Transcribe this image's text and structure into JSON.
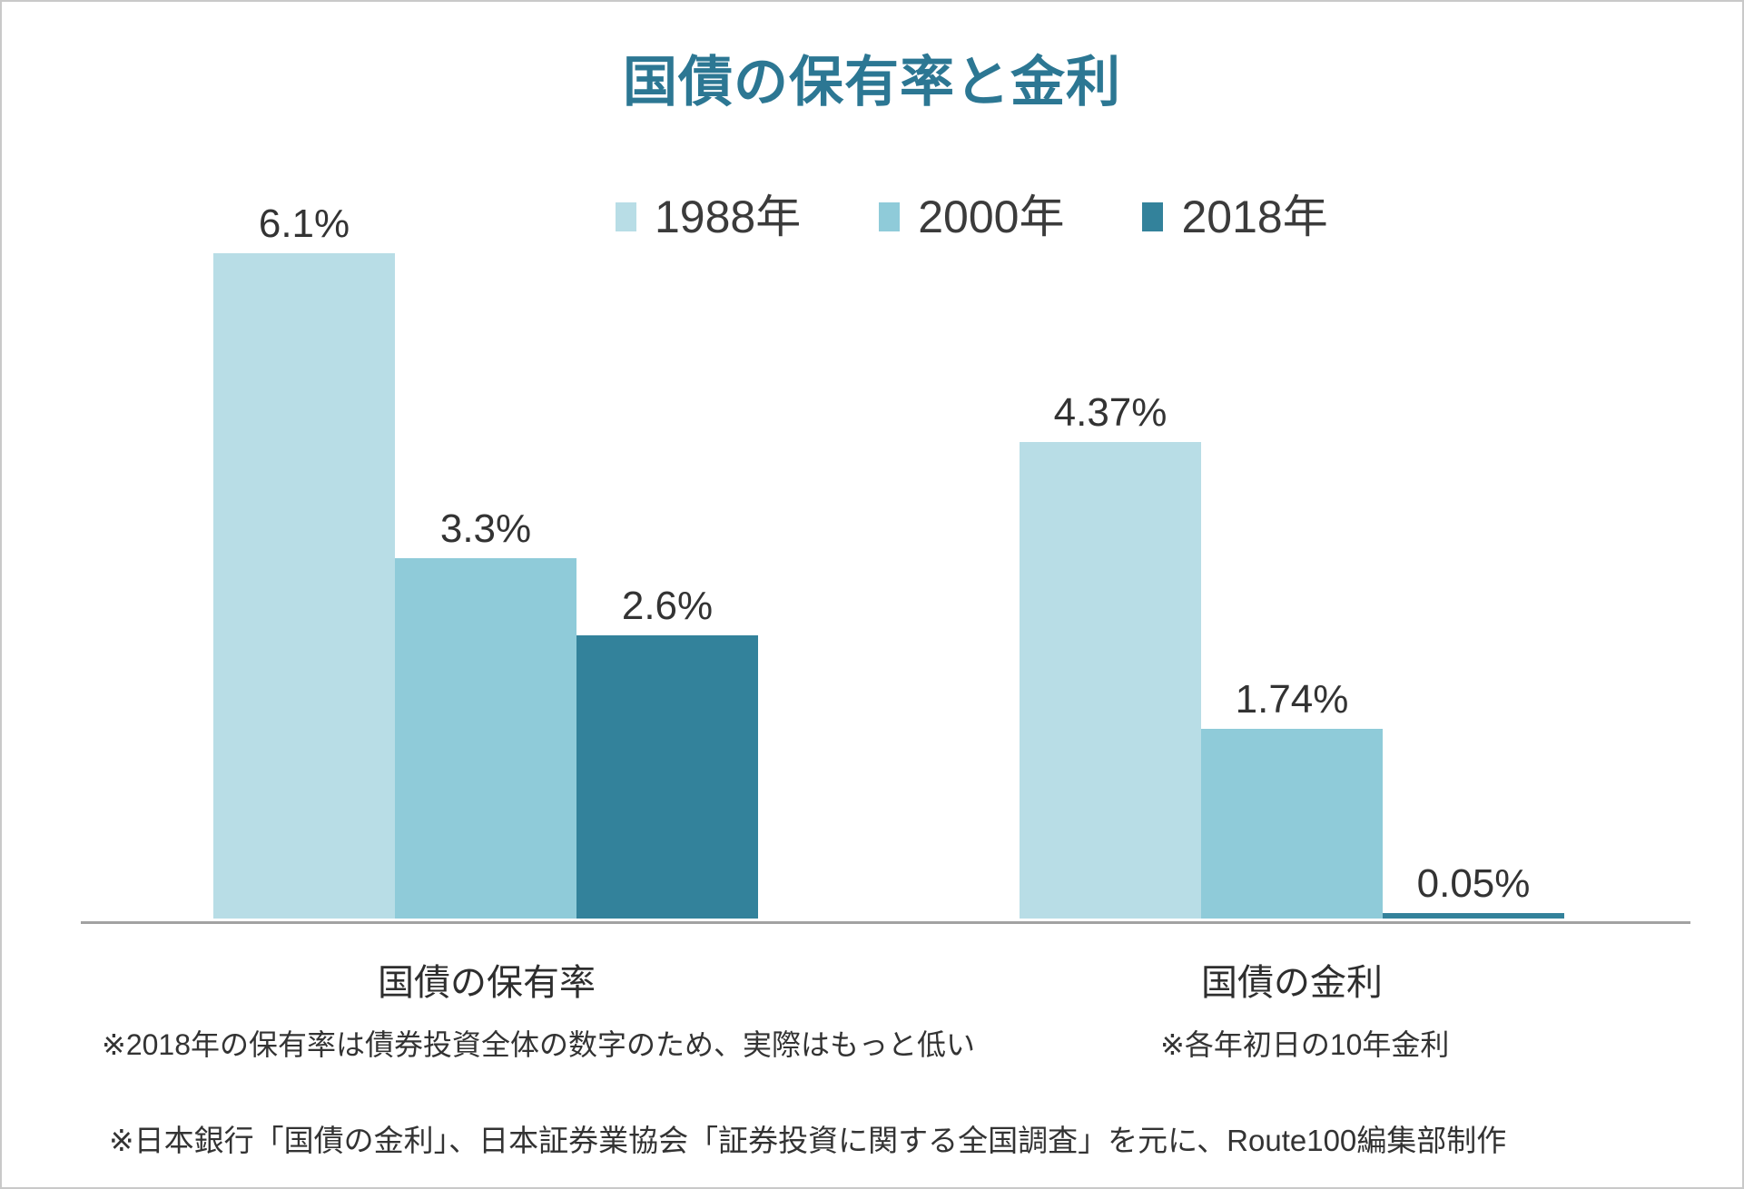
{
  "title": "国債の保有率と金利",
  "legend": [
    {
      "key": "1988",
      "label": "1988年",
      "color": "#b8dde6"
    },
    {
      "key": "2000",
      "label": "2000年",
      "color": "#8fcbd9"
    },
    {
      "key": "2018",
      "label": "2018年",
      "color": "#33829b"
    }
  ],
  "chart_data": {
    "type": "bar",
    "categories": [
      "国債の保有率",
      "国債の金利"
    ],
    "category_keys": [
      "holding-rate",
      "interest-rate"
    ],
    "series": [
      {
        "name": "1988年",
        "color": "#b8dde6",
        "values": [
          6.1,
          4.37
        ]
      },
      {
        "name": "2000年",
        "color": "#8fcbd9",
        "values": [
          3.3,
          1.74
        ]
      },
      {
        "name": "2018年",
        "color": "#33829b",
        "values": [
          2.6,
          0.05
        ]
      }
    ],
    "value_labels": [
      [
        "6.1%",
        "3.3%",
        "2.6%"
      ],
      [
        "4.37%",
        "1.74%",
        "0.05%"
      ]
    ],
    "title": "国債の保有率と金利",
    "xlabel": "",
    "ylabel": "",
    "ylim": [
      0,
      6.1
    ],
    "grid": false,
    "legend_position": "top",
    "unit": "%"
  },
  "footnotes": {
    "holding": "※2018年の保有率は債券投資全体の数字のため、実際はもっと低い",
    "interest": "※各年初日の10年金利",
    "source": "※日本銀行「国債の金利」、日本証券業協会「証券投資に関する全国調査」を元に、Route100編集部制作"
  },
  "colors": {
    "title": "#2c7793",
    "axis": "#a2a2a2",
    "text": "#333333",
    "border": "#c9c9c9"
  }
}
